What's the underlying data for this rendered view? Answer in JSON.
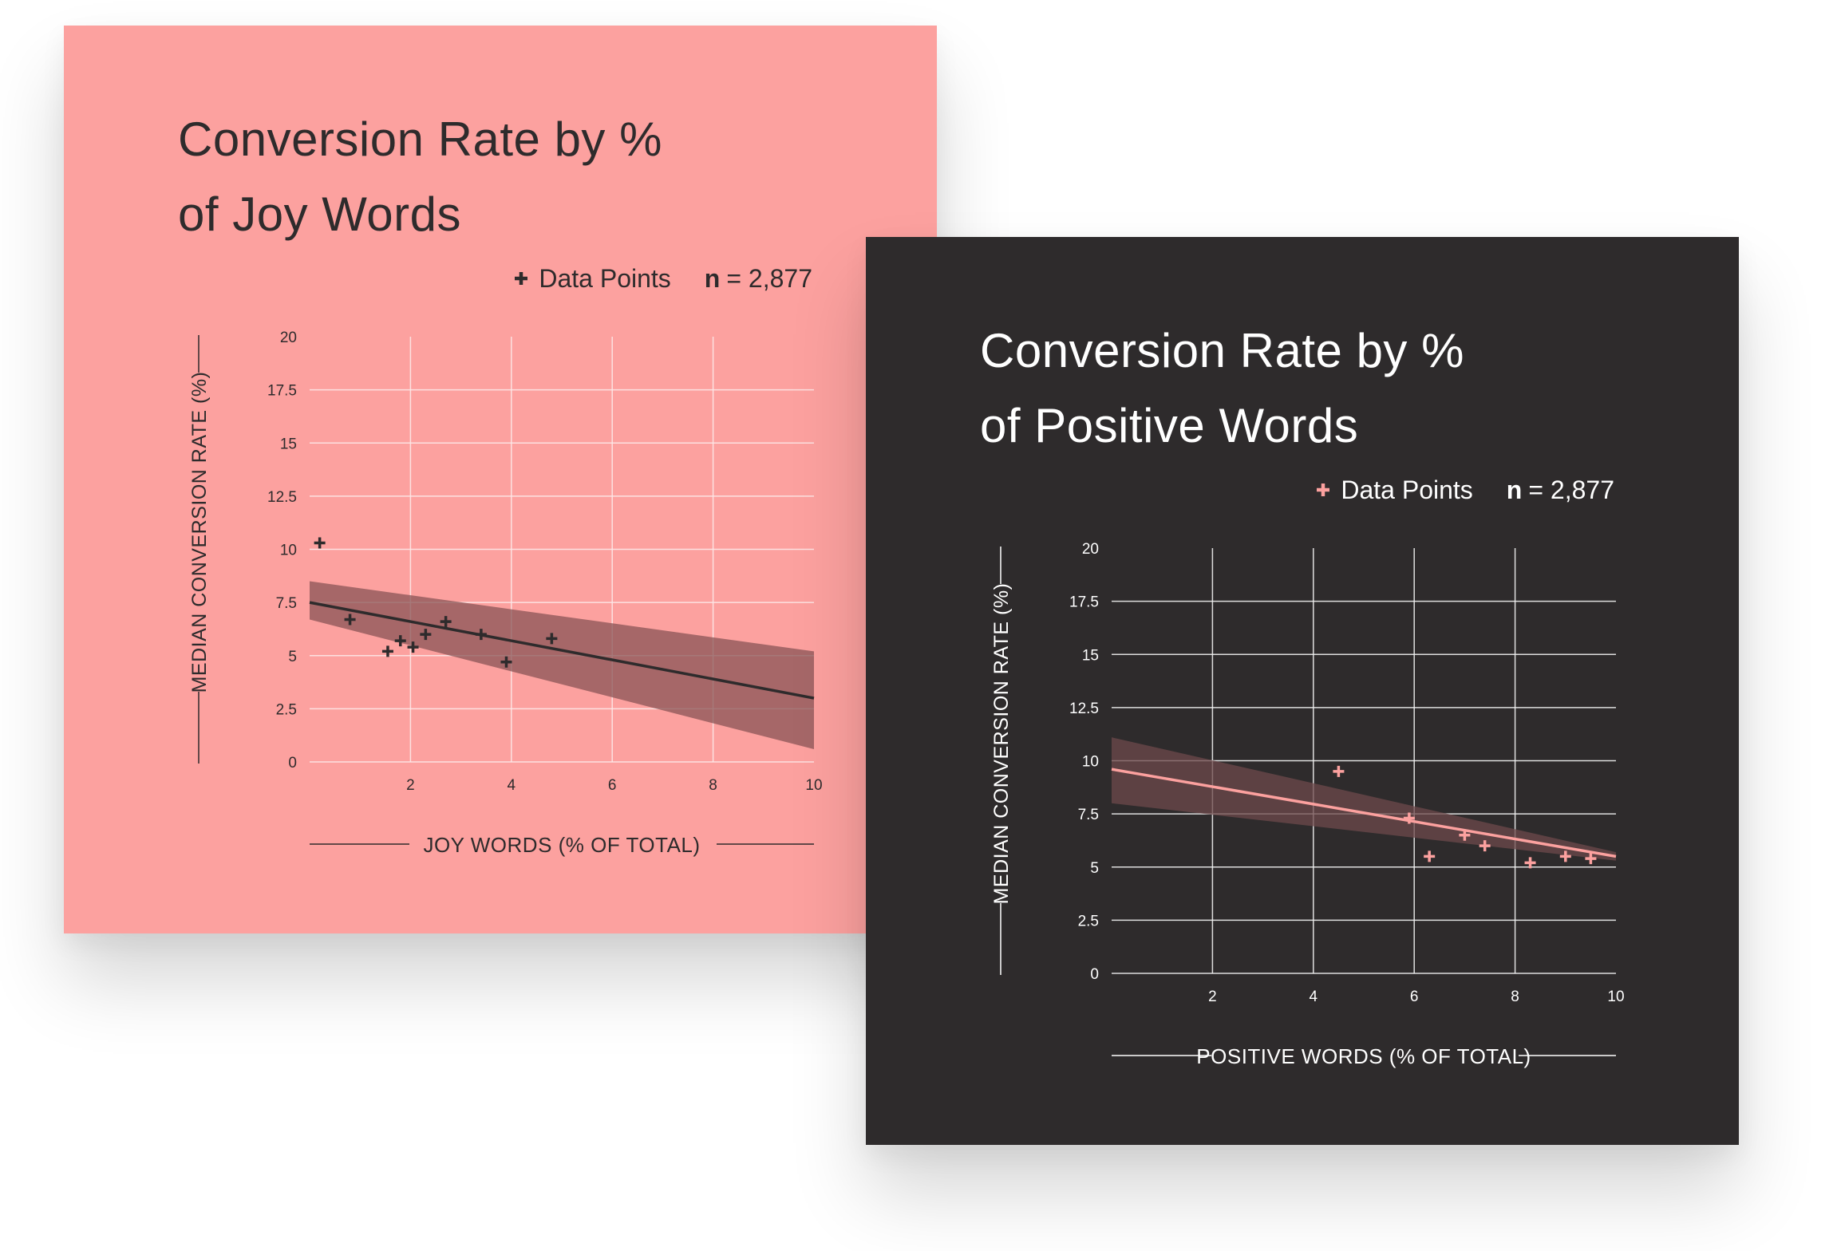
{
  "chart_data": [
    {
      "type": "scatter",
      "title_lines": [
        "Conversion Rate by %",
        "of Joy Words"
      ],
      "legend_label": "Data Points",
      "n_label": "n",
      "n_value": "= 2,877",
      "xlabel": "JOY WORDS (% OF TOTAL)",
      "ylabel": "MEDIAN CONVERSION RATE (%)",
      "xlim": [
        0,
        10
      ],
      "ylim": [
        0,
        20
      ],
      "x_ticks": [
        "2",
        "4",
        "6",
        "8",
        "10"
      ],
      "y_ticks": [
        "0",
        "2.5",
        "5",
        "7.5",
        "10",
        "12.5",
        "15",
        "17.5",
        "20"
      ],
      "grid": true,
      "legend_position": "top-right",
      "points": [
        {
          "x": 0.2,
          "y": 10.3
        },
        {
          "x": 0.8,
          "y": 6.7
        },
        {
          "x": 1.55,
          "y": 5.2
        },
        {
          "x": 1.8,
          "y": 5.7
        },
        {
          "x": 2.05,
          "y": 5.4
        },
        {
          "x": 2.3,
          "y": 6.0
        },
        {
          "x": 2.7,
          "y": 6.6
        },
        {
          "x": 3.4,
          "y": 6.0
        },
        {
          "x": 3.9,
          "y": 4.7
        },
        {
          "x": 4.8,
          "y": 5.8
        }
      ],
      "trend_line": {
        "x": [
          0,
          10
        ],
        "y": [
          7.5,
          3.0
        ]
      },
      "confidence_band": {
        "x": [
          0,
          10
        ],
        "upper": [
          8.5,
          5.2
        ],
        "lower": [
          6.7,
          0.6
        ]
      },
      "colors": {
        "background": "#fca19f",
        "text": "#2e2b2c",
        "marker": "#2e2b2c",
        "line": "#2e2b2c",
        "band": "#8a5455",
        "grid": "#fde8e8"
      }
    },
    {
      "type": "scatter",
      "title_lines": [
        "Conversion Rate by %",
        "of Positive Words"
      ],
      "legend_label": "Data Points",
      "n_label": "n",
      "n_value": "= 2,877",
      "xlabel": "POSITIVE WORDS (% OF TOTAL)",
      "ylabel": "MEDIAN CONVERSION RATE (%)",
      "xlim": [
        0,
        10
      ],
      "ylim": [
        0,
        20
      ],
      "x_ticks": [
        "2",
        "4",
        "6",
        "8",
        "10"
      ],
      "y_ticks": [
        "0",
        "2.5",
        "5",
        "7.5",
        "10",
        "12.5",
        "15",
        "17.5",
        "20"
      ],
      "grid": true,
      "legend_position": "top-right",
      "points": [
        {
          "x": 4.5,
          "y": 9.5
        },
        {
          "x": 5.9,
          "y": 7.3
        },
        {
          "x": 6.3,
          "y": 5.5
        },
        {
          "x": 7.0,
          "y": 6.5
        },
        {
          "x": 7.4,
          "y": 6.0
        },
        {
          "x": 8.3,
          "y": 5.2
        },
        {
          "x": 9.0,
          "y": 5.5
        },
        {
          "x": 9.5,
          "y": 5.4
        }
      ],
      "trend_line": {
        "x": [
          0,
          10
        ],
        "y": [
          9.6,
          5.5
        ]
      },
      "confidence_band": {
        "x": [
          0,
          10
        ],
        "upper": [
          11.1,
          5.7
        ],
        "lower": [
          8.0,
          5.3
        ]
      },
      "colors": {
        "background": "#2e2b2c",
        "text": "#ffffff",
        "marker": "#fca19f",
        "line": "#fca19f",
        "band": "#6d4a4b",
        "grid": "#f2f2f2"
      }
    }
  ]
}
